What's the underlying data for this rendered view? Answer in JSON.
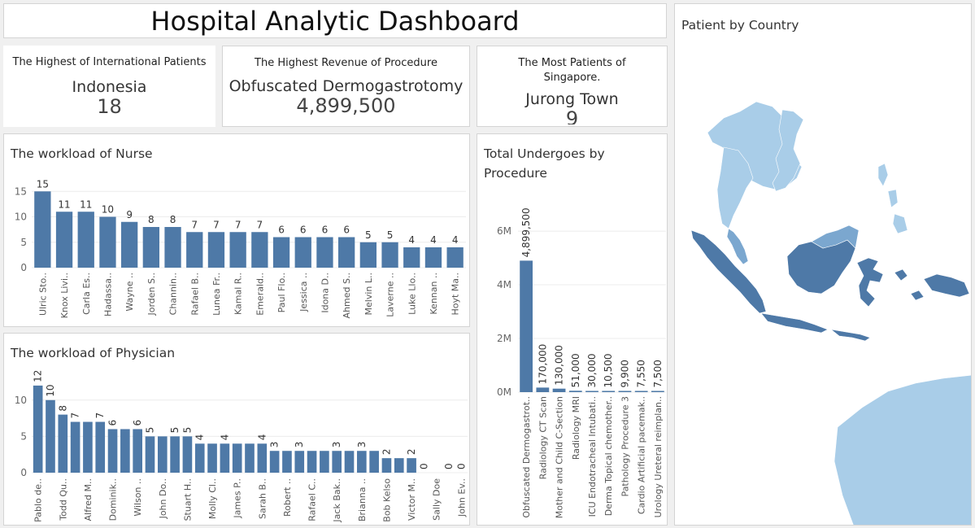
{
  "dashboard": {
    "title": "Hospital Analytic Dashboard"
  },
  "kpis": [
    {
      "label": "The Highest of International Patients",
      "name": "Indonesia",
      "value": "18"
    },
    {
      "label": "The Highest Revenue of Procedure",
      "name": "Obfuscated Dermogastrotomy",
      "value": "4,899,500"
    },
    {
      "label": "The Most Patients of Singapore.",
      "name": "Jurong Town",
      "value": "9"
    }
  ],
  "map": {
    "title": "Patient by Country",
    "colors": {
      "high": "#4e79a7",
      "low": "#a9cde8",
      "mid": "#7ba7cf"
    }
  },
  "chart_data": [
    {
      "type": "bar",
      "title": "The workload of Nurse",
      "xlabel": "",
      "ylabel": "",
      "ylim": [
        0,
        16
      ],
      "yticks": [
        0,
        5,
        10,
        15
      ],
      "ytick_labels": [
        "0",
        "5",
        "10",
        "15"
      ],
      "label_rotation": "horizontal",
      "bar_color": "#4e79a7",
      "categories": [
        "Ulric Sto..",
        "Knox Livi..",
        "Carla Es..",
        "Hadassa..",
        "Wayne ..",
        "Jorden S..",
        "Channin..",
        "Rafael B..",
        "Lunea Fr..",
        "Kamal R..",
        "Emerald..",
        "Paul Flo..",
        "Jessica ..",
        "Idona D..",
        "Ahmed S..",
        "Melvin L..",
        "Laverne ..",
        "Luke Llo..",
        "Kennan ..",
        "Hoyt Ma.."
      ],
      "values": [
        15,
        11,
        11,
        10,
        9,
        8,
        8,
        7,
        7,
        7,
        7,
        6,
        6,
        6,
        6,
        5,
        5,
        4,
        4,
        4
      ],
      "value_labels": [
        "15",
        "11",
        "11",
        "10",
        "9",
        "8",
        "8",
        "7",
        "7",
        "7",
        "7",
        "6",
        "6",
        "6",
        "6",
        "5",
        "5",
        "4",
        "4",
        "4"
      ]
    },
    {
      "type": "bar",
      "title": "The workload of Physician",
      "xlabel": "",
      "ylabel": "",
      "ylim": [
        0,
        13
      ],
      "yticks": [
        0,
        5,
        10
      ],
      "ytick_labels": [
        "0",
        "5",
        "10"
      ],
      "label_rotation": "vertical",
      "bar_color": "#4e79a7",
      "categories": [
        "Pablo de..",
        "",
        "Todd Qu..",
        "",
        "Alfred M..",
        "",
        "Dominik..",
        "",
        "Wilson ..",
        "",
        "John Do..",
        "",
        "Stuart H..",
        "",
        "Molly Cl..",
        "",
        "James P..",
        "",
        "Sarah B..",
        "",
        "Robert ..",
        "",
        "Rafael C..",
        "",
        "Jack Bak..",
        "",
        "Brianna ..",
        "",
        "Bob Kelso",
        "",
        "Victor M..",
        "",
        "Sally Doe",
        "",
        "John Ev.."
      ],
      "values": [
        12,
        10,
        8,
        7,
        7,
        7,
        6,
        6,
        6,
        5,
        5,
        5,
        5,
        4,
        4,
        4,
        4,
        4,
        4,
        3,
        3,
        3,
        3,
        3,
        3,
        3,
        3,
        3,
        2,
        2,
        2,
        0,
        0,
        0,
        0
      ],
      "value_labels": [
        "12",
        "10",
        "8",
        "7",
        "",
        "7",
        "6",
        "",
        "6",
        "5",
        "",
        "5",
        "5",
        "4",
        "",
        "4",
        "",
        "",
        "4",
        "3",
        "",
        "3",
        "",
        "",
        "3",
        "",
        "3",
        "",
        "2",
        "",
        "2",
        "0",
        "",
        "0",
        "0"
      ]
    },
    {
      "type": "bar",
      "title": "Total Undergoes by Procedure",
      "xlabel": "",
      "ylabel": "",
      "ylim": [
        0,
        6700000
      ],
      "yticks": [
        0,
        2000000,
        4000000,
        6000000
      ],
      "ytick_labels": [
        "0M",
        "2M",
        "4M",
        "6M"
      ],
      "label_rotation": "vertical",
      "bar_color": "#4e79a7",
      "categories": [
        "Obfuscated Dermogastrot..",
        "Radiology CT Scan",
        "Mother and Child C-Section",
        "Radiology MRI",
        "ICU Endotracheal Intubati..",
        "Derma Topical chemother..",
        "Pathology Procedure 3",
        "Cardio Artificial pacemak..",
        "Urology Ureteral reimplan.."
      ],
      "values": [
        4899500,
        170000,
        130000,
        51000,
        30000,
        10500,
        9900,
        7550,
        7500
      ],
      "value_labels": [
        "4,899,500",
        "170,000",
        "130,000",
        "51,000",
        "30,000",
        "10,500",
        "9,900",
        "7,550",
        "7,500"
      ]
    }
  ]
}
